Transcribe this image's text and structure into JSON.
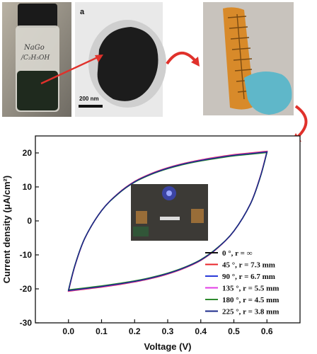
{
  "photos": {
    "vial_label": "NaGo",
    "vial_label_line2": "/C₂H₅OH",
    "tem_panel_letter": "a",
    "tem_scale_bar": "200 nm"
  },
  "colors": {
    "arrow_red": "#e0312b",
    "device_orange": "#d88a2a",
    "glove_teal": "#5fb7c9",
    "led_blue": "#3a4dff"
  },
  "chart_data": {
    "type": "line",
    "title": "",
    "xlabel": "Voltage (V)",
    "ylabel": "Current density (μA/cm²)",
    "xlim": [
      -0.1,
      0.7
    ],
    "ylim": [
      -30,
      25
    ],
    "xticks": [
      "0.0",
      "0.1",
      "0.2",
      "0.3",
      "0.4",
      "0.5",
      "0.6"
    ],
    "xtick_values": [
      0.0,
      0.1,
      0.2,
      0.3,
      0.4,
      0.5,
      0.6
    ],
    "yticks": [
      "-30",
      "-20",
      "-10",
      "0",
      "10",
      "20"
    ],
    "ytick_values": [
      -30,
      -20,
      -10,
      0,
      10,
      20
    ],
    "grid": false,
    "legend_position": "bottom-right",
    "cycle_upper": {
      "x": [
        0.0,
        0.02,
        0.05,
        0.1,
        0.15,
        0.2,
        0.25,
        0.3,
        0.35,
        0.4,
        0.45,
        0.5,
        0.55,
        0.6
      ],
      "y": [
        -20.5,
        -13,
        -5,
        3,
        8,
        11.5,
        13.8,
        15.5,
        16.8,
        17.8,
        18.6,
        19.3,
        19.8,
        20.3
      ]
    },
    "cycle_lower": {
      "x": [
        0.6,
        0.58,
        0.55,
        0.5,
        0.45,
        0.4,
        0.35,
        0.3,
        0.25,
        0.2,
        0.15,
        0.1,
        0.05,
        0.0
      ],
      "y": [
        20.3,
        13,
        5,
        -3,
        -8,
        -11.5,
        -13.8,
        -15.5,
        -16.8,
        -17.8,
        -18.6,
        -19.3,
        -19.9,
        -20.5
      ]
    },
    "series": [
      {
        "name": "0 °, r = ∞",
        "color": "#111111",
        "scale": 1.0
      },
      {
        "name": "45 °, r = 7.3 mm",
        "color": "#e8242a",
        "scale": 1.01
      },
      {
        "name": "90 °, r = 6.7 mm",
        "color": "#2a3ad8",
        "scale": 0.995
      },
      {
        "name": "135 °, r = 5.5 mm",
        "color": "#e23ce6",
        "scale": 1.005
      },
      {
        "name": "180 °, r = 4.5 mm",
        "color": "#2e8a2e",
        "scale": 0.99
      },
      {
        "name": "225 °, r = 3.8 mm",
        "color": "#1b2a8a",
        "scale": 1.0
      }
    ]
  }
}
